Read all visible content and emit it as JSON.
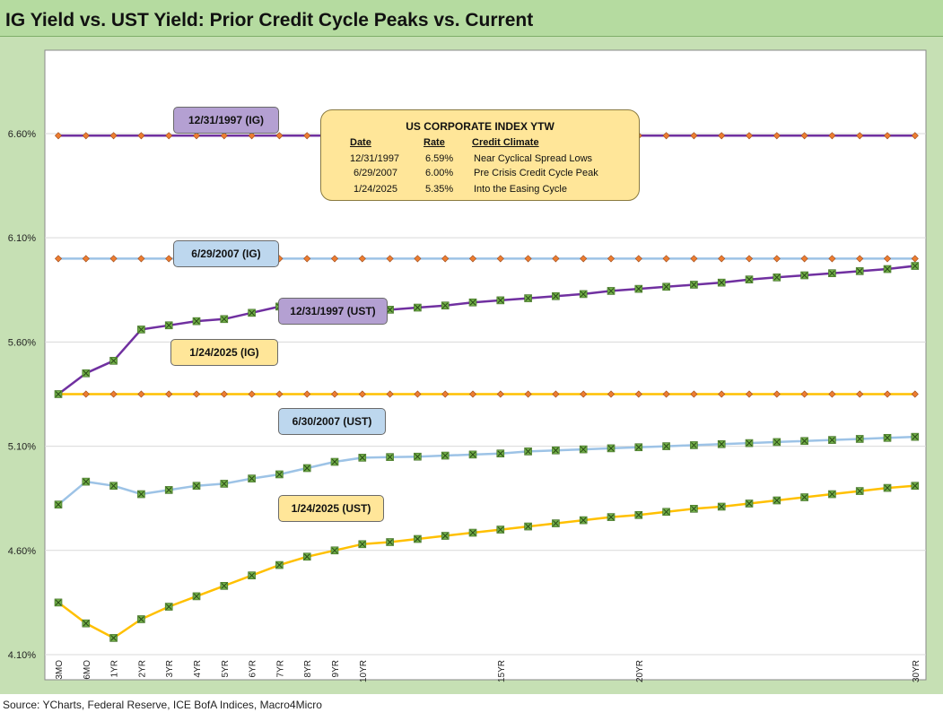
{
  "title": "IG Yield vs. UST Yield: Prior Credit Cycle Peaks vs. Current",
  "source": "Source: YCharts, Federal Reserve, ICE BofA Indices, Macro4Micro",
  "info_box": {
    "title": "US CORPORATE  INDEX YTW",
    "headers": [
      "Date",
      "Rate",
      "Credit Climate"
    ],
    "rows": [
      [
        "12/31/1997",
        "6.59%",
        "Near Cyclical Spread Lows"
      ],
      [
        "6/29/2007",
        "6.00%",
        "Pre Crisis Credit Cycle Peak"
      ],
      [
        "1/24/2025",
        "5.35%",
        "Into the Easing Cycle"
      ]
    ]
  },
  "labels": {
    "ig_1997": "12/31/1997 (IG)",
    "ig_2007": "6/29/2007 (IG)",
    "ust_1997": "12/31/1997 (UST)",
    "ig_2025": "1/24/2025 (IG)",
    "ust_2007": "6/30/2007 (UST)",
    "ust_2025": "1/24/2025 (UST)"
  },
  "colors": {
    "purple": "#7030a0",
    "lightblue": "#9dc3e6",
    "gold": "#ffc000",
    "marker_orange": "#ed7d31",
    "marker_green": "#70ad47",
    "box_purple": "#b4a0d2",
    "box_blue": "#bdd7ee",
    "box_gold": "#ffe699"
  },
  "chart_data": {
    "type": "line",
    "x": [
      "3MO",
      "6MO",
      "1YR",
      "2YR",
      "3YR",
      "4YR",
      "5YR",
      "6YR",
      "7YR",
      "8YR",
      "9YR",
      "10YR",
      "11YR",
      "12YR",
      "13YR",
      "14YR",
      "15YR",
      "16YR",
      "17YR",
      "18YR",
      "19YR",
      "20YR",
      "21YR",
      "22YR",
      "23YR",
      "24YR",
      "25YR",
      "26YR",
      "27YR",
      "28YR",
      "29YR",
      "30YR"
    ],
    "x_tick_labels": [
      "3MO",
      "6MO",
      "1YR",
      "2YR",
      "3YR",
      "4YR",
      "5YR",
      "6YR",
      "7YR",
      "8YR",
      "9YR",
      "10YR",
      "",
      "",
      "",
      "",
      "15YR",
      "",
      "",
      "",
      "",
      "20YR",
      "",
      "",
      "",
      "",
      "",
      "",
      "",
      "",
      "",
      "30YR"
    ],
    "y_ticks": [
      "4.10%",
      "4.60%",
      "5.10%",
      "5.60%",
      "6.10%",
      "6.60%"
    ],
    "y_tick_values": [
      4.1,
      4.6,
      5.1,
      5.6,
      6.1,
      6.6
    ],
    "ylim": [
      4.1,
      7.0
    ],
    "grid": "horizontal",
    "series": [
      {
        "key": "ig_1997",
        "color": "#7030a0",
        "marker": "diamond",
        "values": [
          6.59,
          6.59,
          6.59,
          6.59,
          6.59,
          6.59,
          6.59,
          6.59,
          6.59,
          6.59,
          6.59,
          6.59,
          6.59,
          6.59,
          6.59,
          6.59,
          6.59,
          6.59,
          6.59,
          6.59,
          6.59,
          6.59,
          6.59,
          6.59,
          6.59,
          6.59,
          6.59,
          6.59,
          6.59,
          6.59,
          6.59,
          6.59
        ]
      },
      {
        "key": "ig_2007",
        "color": "#9dc3e6",
        "marker": "diamond",
        "values": [
          6.0,
          6.0,
          6.0,
          6.0,
          6.0,
          6.0,
          6.0,
          6.0,
          6.0,
          6.0,
          6.0,
          6.0,
          6.0,
          6.0,
          6.0,
          6.0,
          6.0,
          6.0,
          6.0,
          6.0,
          6.0,
          6.0,
          6.0,
          6.0,
          6.0,
          6.0,
          6.0,
          6.0,
          6.0,
          6.0,
          6.0,
          6.0
        ]
      },
      {
        "key": "ig_2025",
        "color": "#ffc000",
        "marker": "diamond",
        "values": [
          5.35,
          5.35,
          5.35,
          5.35,
          5.35,
          5.35,
          5.35,
          5.35,
          5.35,
          5.35,
          5.35,
          5.35,
          5.35,
          5.35,
          5.35,
          5.35,
          5.35,
          5.35,
          5.35,
          5.35,
          5.35,
          5.35,
          5.35,
          5.35,
          5.35,
          5.35,
          5.35,
          5.35,
          5.35,
          5.35,
          5.35,
          5.35
        ]
      },
      {
        "key": "ust_1997",
        "color": "#7030a0",
        "marker": "x",
        "values": [
          5.35,
          5.45,
          5.51,
          5.66,
          5.68,
          5.7,
          5.71,
          5.74,
          5.77,
          5.76,
          5.755,
          5.745,
          5.755,
          5.765,
          5.775,
          5.79,
          5.8,
          5.81,
          5.82,
          5.83,
          5.845,
          5.855,
          5.865,
          5.875,
          5.885,
          5.9,
          5.91,
          5.92,
          5.93,
          5.94,
          5.95,
          5.965
        ]
      },
      {
        "key": "ust_2007",
        "color": "#9dc3e6",
        "marker": "x",
        "values": [
          4.82,
          4.93,
          4.91,
          4.87,
          4.89,
          4.91,
          4.92,
          4.945,
          4.965,
          4.995,
          5.025,
          5.045,
          5.048,
          5.05,
          5.055,
          5.06,
          5.065,
          5.075,
          5.08,
          5.085,
          5.09,
          5.095,
          5.1,
          5.105,
          5.11,
          5.115,
          5.12,
          5.125,
          5.13,
          5.135,
          5.14,
          5.145
        ]
      },
      {
        "key": "ust_2025",
        "color": "#ffc000",
        "marker": "x",
        "values": [
          4.35,
          4.25,
          4.18,
          4.27,
          4.33,
          4.38,
          4.43,
          4.48,
          4.53,
          4.57,
          4.6,
          4.63,
          4.64,
          4.655,
          4.67,
          4.685,
          4.7,
          4.715,
          4.73,
          4.745,
          4.76,
          4.77,
          4.785,
          4.8,
          4.81,
          4.825,
          4.84,
          4.855,
          4.87,
          4.885,
          4.9,
          4.91
        ]
      }
    ]
  }
}
